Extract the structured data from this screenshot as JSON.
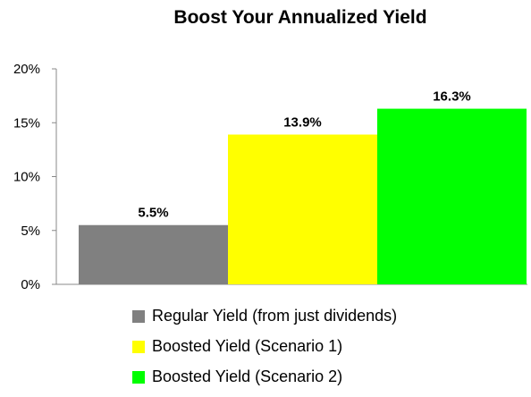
{
  "chart_data": {
    "type": "bar",
    "title": "Boost Your Annualized Yield",
    "xlabel": "",
    "ylabel": "",
    "ylim": [
      0,
      20
    ],
    "yticks": [
      "0%",
      "5%",
      "10%",
      "15%",
      "20%"
    ],
    "ytick_values": [
      0,
      5,
      10,
      15,
      20
    ],
    "grid": false,
    "legend_position": "bottom",
    "bars": [
      {
        "label": "Regular Yield (from just dividends)",
        "value": 5.5,
        "data_label": "5.5%",
        "color": "#808080"
      },
      {
        "label": "Boosted Yield (Scenario 1)",
        "value": 13.9,
        "data_label": "13.9%",
        "color": "#FFFF00"
      },
      {
        "label": "Boosted Yield (Scenario 2)",
        "value": 16.3,
        "data_label": "16.3%",
        "color": "#00FF00"
      }
    ]
  }
}
